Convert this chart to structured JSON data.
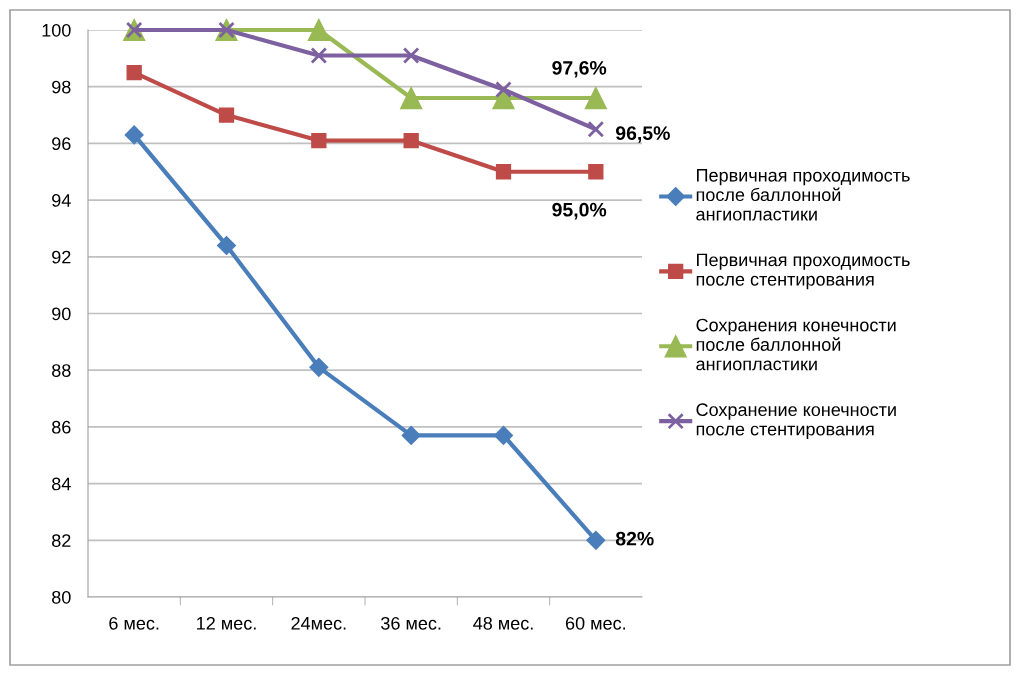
{
  "chart_data": {
    "type": "line",
    "categories": [
      "6 мес.",
      "12 мес.",
      "24мес.",
      "36 мес.",
      "48 мес.",
      "60 мес."
    ],
    "series": [
      {
        "name": "Первичная проходимость\nпосле баллонной\nангиопластики",
        "color": "#4a7ebb",
        "marker": "diamond",
        "values": [
          96.3,
          92.4,
          88.1,
          85.7,
          85.7,
          82
        ]
      },
      {
        "name": "Первичная проходимость\nпосле стентирования",
        "color": "#be4b48",
        "marker": "square",
        "values": [
          98.5,
          97.0,
          96.1,
          96.1,
          95.0,
          95.0
        ]
      },
      {
        "name": "Сохранения конечности\nпосле баллонной\nангиопластики",
        "color": "#98b954",
        "marker": "triangle",
        "values": [
          100,
          100,
          100,
          97.6,
          97.6,
          97.6
        ]
      },
      {
        "name": "Сохранение конечности\nпосле стентирования",
        "color": "#7d60a0",
        "marker": "cross",
        "values": [
          100,
          100,
          99.1,
          99.1,
          97.9,
          96.5
        ]
      }
    ],
    "ylim": [
      80,
      100
    ],
    "yticks": [
      80,
      82,
      84,
      86,
      88,
      90,
      92,
      94,
      96,
      98,
      100
    ],
    "grid": "y",
    "legend": "right",
    "line_style": "solid",
    "annotations": [
      {
        "text": "97,6%",
        "x": "60 мес.",
        "y": 97.6
      },
      {
        "text": "96,5%",
        "x": "60 мес.",
        "y": 96.5
      },
      {
        "text": "95,0%",
        "x": "60 мес.",
        "y": 95.0
      },
      {
        "text": "82%",
        "x": "60 мес.",
        "y": 82
      }
    ]
  }
}
